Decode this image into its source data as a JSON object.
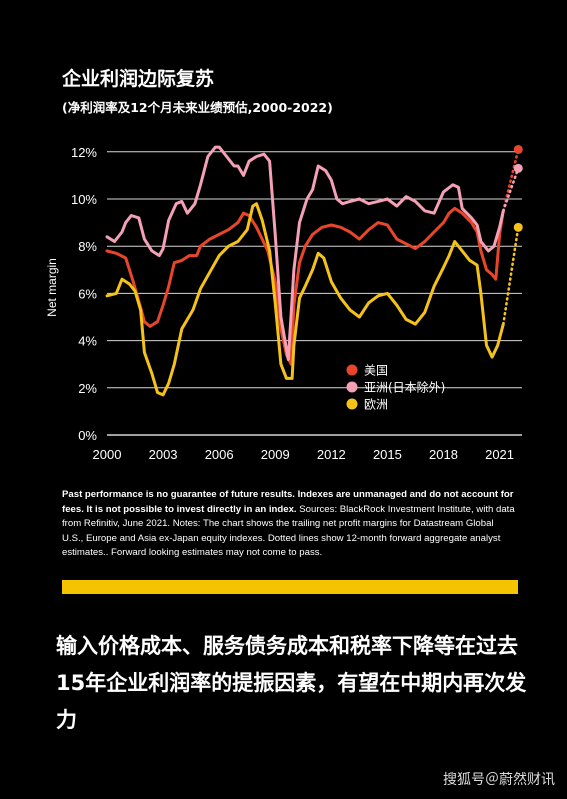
{
  "title": "企业利润边际复苏",
  "subtitle": "(净利润率及12个月未来业绩预估,2000-2022)",
  "chart_data": {
    "type": "line",
    "ylabel": "Net margin",
    "xlim": [
      2000,
      2022.2
    ],
    "ylim": [
      0,
      12.5
    ],
    "x_ticks": [
      2000,
      2003,
      2006,
      2009,
      2012,
      2015,
      2018,
      2021
    ],
    "x_tick_labels": [
      "2000",
      "2003",
      "2006",
      "2009",
      "2012",
      "2015",
      "2018",
      "2021"
    ],
    "y_ticks": [
      0,
      2,
      4,
      6,
      8,
      10,
      12
    ],
    "y_tick_labels": [
      "0%",
      "2%",
      "4%",
      "6%",
      "8%",
      "10%",
      "12%"
    ],
    "grid": "horizontal",
    "legend_position": "lower-right",
    "series": [
      {
        "name": "美国",
        "color": "#e8462a",
        "points": [
          [
            2000,
            7.8
          ],
          [
            2000.5,
            7.7
          ],
          [
            2001,
            7.5
          ],
          [
            2001.4,
            6.5
          ],
          [
            2001.8,
            5.4
          ],
          [
            2002,
            4.8
          ],
          [
            2002.3,
            4.6
          ],
          [
            2002.7,
            4.8
          ],
          [
            2003,
            5.5
          ],
          [
            2003.3,
            6.3
          ],
          [
            2003.6,
            7.3
          ],
          [
            2004,
            7.4
          ],
          [
            2004.4,
            7.6
          ],
          [
            2004.8,
            7.6
          ],
          [
            2005,
            8.0
          ],
          [
            2005.5,
            8.3
          ],
          [
            2006,
            8.5
          ],
          [
            2006.5,
            8.7
          ],
          [
            2007,
            9.0
          ],
          [
            2007.3,
            9.4
          ],
          [
            2007.6,
            9.3
          ],
          [
            2008,
            8.8
          ],
          [
            2008.3,
            8.3
          ],
          [
            2008.6,
            7.8
          ],
          [
            2009,
            6.5
          ],
          [
            2009.3,
            4.5
          ],
          [
            2009.6,
            3.4
          ],
          [
            2009.85,
            3.0
          ],
          [
            2010,
            5.5
          ],
          [
            2010.3,
            7.3
          ],
          [
            2010.6,
            8.0
          ],
          [
            2011,
            8.5
          ],
          [
            2011.5,
            8.8
          ],
          [
            2012,
            8.9
          ],
          [
            2012.5,
            8.8
          ],
          [
            2013,
            8.6
          ],
          [
            2013.5,
            8.3
          ],
          [
            2014,
            8.7
          ],
          [
            2014.5,
            9.0
          ],
          [
            2015,
            8.9
          ],
          [
            2015.5,
            8.3
          ],
          [
            2016,
            8.1
          ],
          [
            2016.5,
            7.9
          ],
          [
            2017,
            8.2
          ],
          [
            2017.5,
            8.6
          ],
          [
            2018,
            9.0
          ],
          [
            2018.3,
            9.4
          ],
          [
            2018.6,
            9.6
          ],
          [
            2019,
            9.4
          ],
          [
            2019.5,
            9.0
          ],
          [
            2019.8,
            8.6
          ],
          [
            2020,
            7.8
          ],
          [
            2020.3,
            7.0
          ],
          [
            2020.6,
            6.8
          ],
          [
            2020.8,
            6.6
          ],
          [
            2021,
            8.5
          ],
          [
            2021.2,
            9.5
          ]
        ],
        "forecast": [
          [
            2021.2,
            9.5
          ],
          [
            2022,
            12.1
          ]
        ]
      },
      {
        "name": "亚洲(日本除外)",
        "color": "#f4a0b6",
        "points": [
          [
            2000,
            8.4
          ],
          [
            2000.4,
            8.2
          ],
          [
            2000.8,
            8.6
          ],
          [
            2001,
            9.0
          ],
          [
            2001.3,
            9.3
          ],
          [
            2001.7,
            9.2
          ],
          [
            2002,
            8.3
          ],
          [
            2002.4,
            7.8
          ],
          [
            2002.8,
            7.6
          ],
          [
            2003,
            7.9
          ],
          [
            2003.3,
            9.1
          ],
          [
            2003.7,
            9.8
          ],
          [
            2004,
            9.9
          ],
          [
            2004.3,
            9.4
          ],
          [
            2004.7,
            9.8
          ],
          [
            2005,
            10.6
          ],
          [
            2005.4,
            11.8
          ],
          [
            2005.8,
            12.2
          ],
          [
            2006,
            12.2
          ],
          [
            2006.4,
            11.8
          ],
          [
            2006.8,
            11.4
          ],
          [
            2007,
            11.4
          ],
          [
            2007.3,
            11.0
          ],
          [
            2007.6,
            11.6
          ],
          [
            2008,
            11.8
          ],
          [
            2008.4,
            11.9
          ],
          [
            2008.7,
            11.6
          ],
          [
            2009,
            8.5
          ],
          [
            2009.3,
            5.0
          ],
          [
            2009.7,
            3.2
          ],
          [
            2010,
            7.0
          ],
          [
            2010.3,
            9.0
          ],
          [
            2010.7,
            10.0
          ],
          [
            2011,
            10.4
          ],
          [
            2011.3,
            11.4
          ],
          [
            2011.7,
            11.2
          ],
          [
            2012,
            10.8
          ],
          [
            2012.3,
            10.0
          ],
          [
            2012.6,
            9.8
          ],
          [
            2013,
            9.9
          ],
          [
            2013.5,
            10.0
          ],
          [
            2014,
            9.8
          ],
          [
            2014.5,
            9.9
          ],
          [
            2015,
            10.0
          ],
          [
            2015.5,
            9.7
          ],
          [
            2016,
            10.1
          ],
          [
            2016.5,
            9.9
          ],
          [
            2017,
            9.5
          ],
          [
            2017.5,
            9.4
          ],
          [
            2018,
            10.3
          ],
          [
            2018.5,
            10.6
          ],
          [
            2018.8,
            10.5
          ],
          [
            2019,
            9.6
          ],
          [
            2019.5,
            9.2
          ],
          [
            2019.8,
            8.9
          ],
          [
            2020,
            8.2
          ],
          [
            2020.4,
            7.8
          ],
          [
            2020.7,
            8.0
          ],
          [
            2021,
            8.8
          ],
          [
            2021.2,
            9.5
          ]
        ],
        "forecast": [
          [
            2021.2,
            9.5
          ],
          [
            2022,
            11.3
          ]
        ]
      },
      {
        "name": "欧洲",
        "color": "#f5c318",
        "points": [
          [
            2000,
            5.9
          ],
          [
            2000.5,
            6.0
          ],
          [
            2000.8,
            6.6
          ],
          [
            2001.2,
            6.4
          ],
          [
            2001.5,
            6.1
          ],
          [
            2001.8,
            5.3
          ],
          [
            2002,
            3.5
          ],
          [
            2002.4,
            2.6
          ],
          [
            2002.7,
            1.8
          ],
          [
            2003,
            1.7
          ],
          [
            2003.3,
            2.2
          ],
          [
            2003.6,
            3.0
          ],
          [
            2004,
            4.5
          ],
          [
            2004.3,
            4.9
          ],
          [
            2004.6,
            5.3
          ],
          [
            2005,
            6.2
          ],
          [
            2005.5,
            6.9
          ],
          [
            2006,
            7.6
          ],
          [
            2006.5,
            8.0
          ],
          [
            2007,
            8.2
          ],
          [
            2007.5,
            8.7
          ],
          [
            2007.8,
            9.7
          ],
          [
            2008,
            9.8
          ],
          [
            2008.3,
            9.1
          ],
          [
            2008.7,
            7.8
          ],
          [
            2009,
            5.6
          ],
          [
            2009.3,
            3.0
          ],
          [
            2009.6,
            2.4
          ],
          [
            2009.9,
            2.4
          ],
          [
            2010,
            3.8
          ],
          [
            2010.3,
            5.8
          ],
          [
            2010.6,
            6.3
          ],
          [
            2011,
            7.0
          ],
          [
            2011.3,
            7.7
          ],
          [
            2011.6,
            7.5
          ],
          [
            2012,
            6.5
          ],
          [
            2012.5,
            5.8
          ],
          [
            2013,
            5.3
          ],
          [
            2013.5,
            5.0
          ],
          [
            2014,
            5.6
          ],
          [
            2014.5,
            5.9
          ],
          [
            2015,
            6.0
          ],
          [
            2015.5,
            5.5
          ],
          [
            2016,
            4.9
          ],
          [
            2016.5,
            4.7
          ],
          [
            2017,
            5.2
          ],
          [
            2017.5,
            6.3
          ],
          [
            2018,
            7.1
          ],
          [
            2018.3,
            7.6
          ],
          [
            2018.6,
            8.2
          ],
          [
            2019,
            7.8
          ],
          [
            2019.4,
            7.4
          ],
          [
            2019.8,
            7.2
          ],
          [
            2020,
            6.0
          ],
          [
            2020.3,
            3.8
          ],
          [
            2020.6,
            3.3
          ],
          [
            2020.9,
            3.8
          ],
          [
            2021.2,
            4.7
          ]
        ],
        "forecast": [
          [
            2021.2,
            4.7
          ],
          [
            2022,
            8.8
          ]
        ]
      }
    ]
  },
  "note": {
    "bold_text": "Past performance is no guarantee of future results. Indexes are unmanaged and do not account for fees. It is not possible to invest directly in an index.",
    "plain_text": " Sources: BlackRock Investment Institute, with data from Refinitiv, June 2021. Notes: The chart shows the trailing net profit margins for Datastream Global U.S., Europe and Asia ex-Japan equity indexes. Dotted lines show 12-month forward aggregate analyst estimates.. Forward looking estimates may not come to pass."
  },
  "headline": "输入价格成本、服务债务成本和税率下降等在过去15年企业利润率的提振因素，有望在中期内再次发力",
  "watermark": "搜狐号＠蔚然财讯",
  "colors": {
    "background": "#000000",
    "accent_bar": "#f5c400"
  }
}
